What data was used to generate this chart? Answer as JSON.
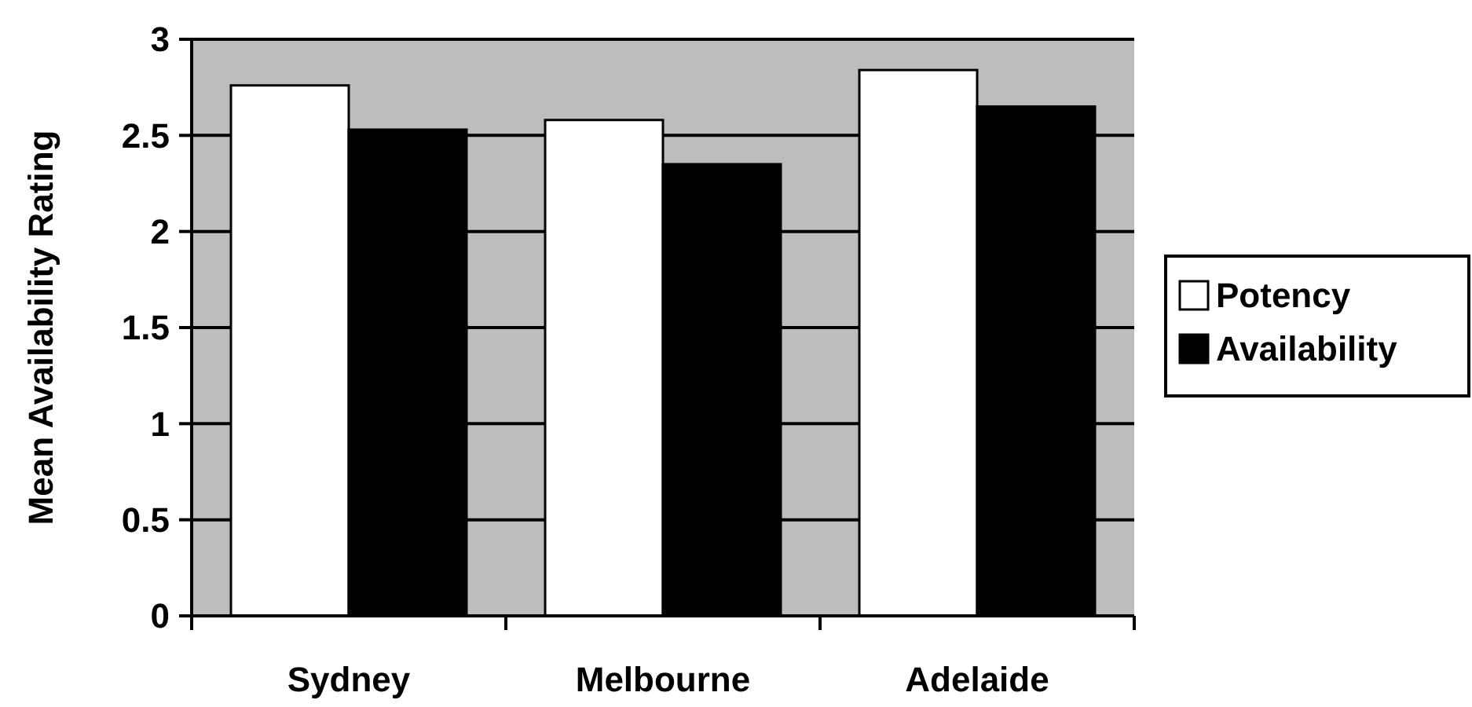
{
  "chart_data": {
    "type": "bar",
    "ylabel": "Mean Availability Rating",
    "categories": [
      "Sydney",
      "Melbourne",
      "Adelaide"
    ],
    "series": [
      {
        "name": "Potency",
        "color": "#ffffff",
        "values": [
          2.76,
          2.58,
          2.84
        ]
      },
      {
        "name": "Availability",
        "color": "#000000",
        "values": [
          2.53,
          2.35,
          2.65
        ]
      }
    ],
    "ylim": [
      0,
      3
    ],
    "yticks": [
      0,
      0.5,
      1,
      1.5,
      2,
      2.5,
      3
    ],
    "grid": "y",
    "legend": "right"
  }
}
